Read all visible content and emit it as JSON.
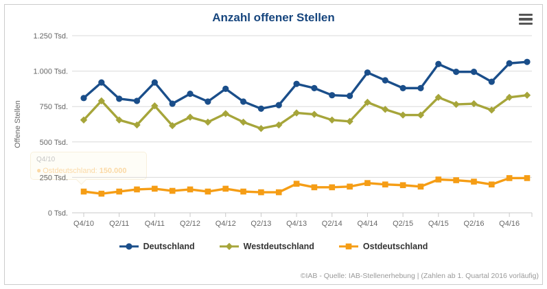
{
  "chart_data": {
    "type": "line",
    "title": "Anzahl offener Stellen",
    "ylabel": "Offene Stellen",
    "unit": "Tsd.",
    "ylim": [
      0,
      1250
    ],
    "ytick_values": [
      0,
      250,
      500,
      750,
      1000,
      1250
    ],
    "yticks": [
      "0 Tsd.",
      "250 Tsd.",
      "500 Tsd.",
      "750 Tsd.",
      "1.000 Tsd.",
      "1.250 Tsd."
    ],
    "grid": true,
    "legend_position": "bottom",
    "categories": [
      "Q4/10",
      "Q1/11",
      "Q2/11",
      "Q3/11",
      "Q4/11",
      "Q1/12",
      "Q2/12",
      "Q3/12",
      "Q4/12",
      "Q1/13",
      "Q2/13",
      "Q3/13",
      "Q4/13",
      "Q1/14",
      "Q2/14",
      "Q3/14",
      "Q4/14",
      "Q1/15",
      "Q2/15",
      "Q3/15",
      "Q4/15",
      "Q1/16",
      "Q2/16",
      "Q3/16",
      "Q4/16",
      "Q1/17"
    ],
    "xtick_labels": [
      "Q4/10",
      "Q2/11",
      "Q4/11",
      "Q2/12",
      "Q4/12",
      "Q2/13",
      "Q4/13",
      "Q2/14",
      "Q4/14",
      "Q2/15",
      "Q4/15",
      "Q2/16",
      "Q4/16"
    ],
    "series": [
      {
        "name": "Deutschland",
        "color": "#1a4e8a",
        "marker": "circle",
        "values": [
          810,
          920,
          805,
          790,
          920,
          770,
          840,
          785,
          875,
          785,
          735,
          760,
          910,
          880,
          830,
          825,
          990,
          935,
          880,
          880,
          1050,
          995,
          995,
          925,
          1055,
          1065
        ]
      },
      {
        "name": "Westdeutschland",
        "color": "#a6a53a",
        "marker": "diamond",
        "values": [
          655,
          790,
          655,
          620,
          755,
          615,
          675,
          640,
          700,
          640,
          595,
          620,
          705,
          695,
          655,
          645,
          780,
          730,
          690,
          690,
          815,
          765,
          770,
          725,
          815,
          830
        ]
      },
      {
        "name": "Ostdeutschland",
        "color": "#f59d15",
        "marker": "square",
        "values": [
          150,
          135,
          150,
          165,
          170,
          155,
          165,
          150,
          170,
          150,
          145,
          145,
          205,
          180,
          180,
          185,
          210,
          200,
          195,
          185,
          235,
          230,
          220,
          200,
          245,
          245
        ]
      }
    ]
  },
  "tooltip": {
    "header": "Q4/10",
    "marker_glyph": "●",
    "series": "Ostdeutschland:",
    "value": "150.000"
  },
  "icons": {
    "menu": "hamburger"
  },
  "footer": {
    "credits": "©IAB - Quelle: IAB-Stellenerhebung | (Zahlen ab 1. Quartal 2016 vorläufig)"
  }
}
